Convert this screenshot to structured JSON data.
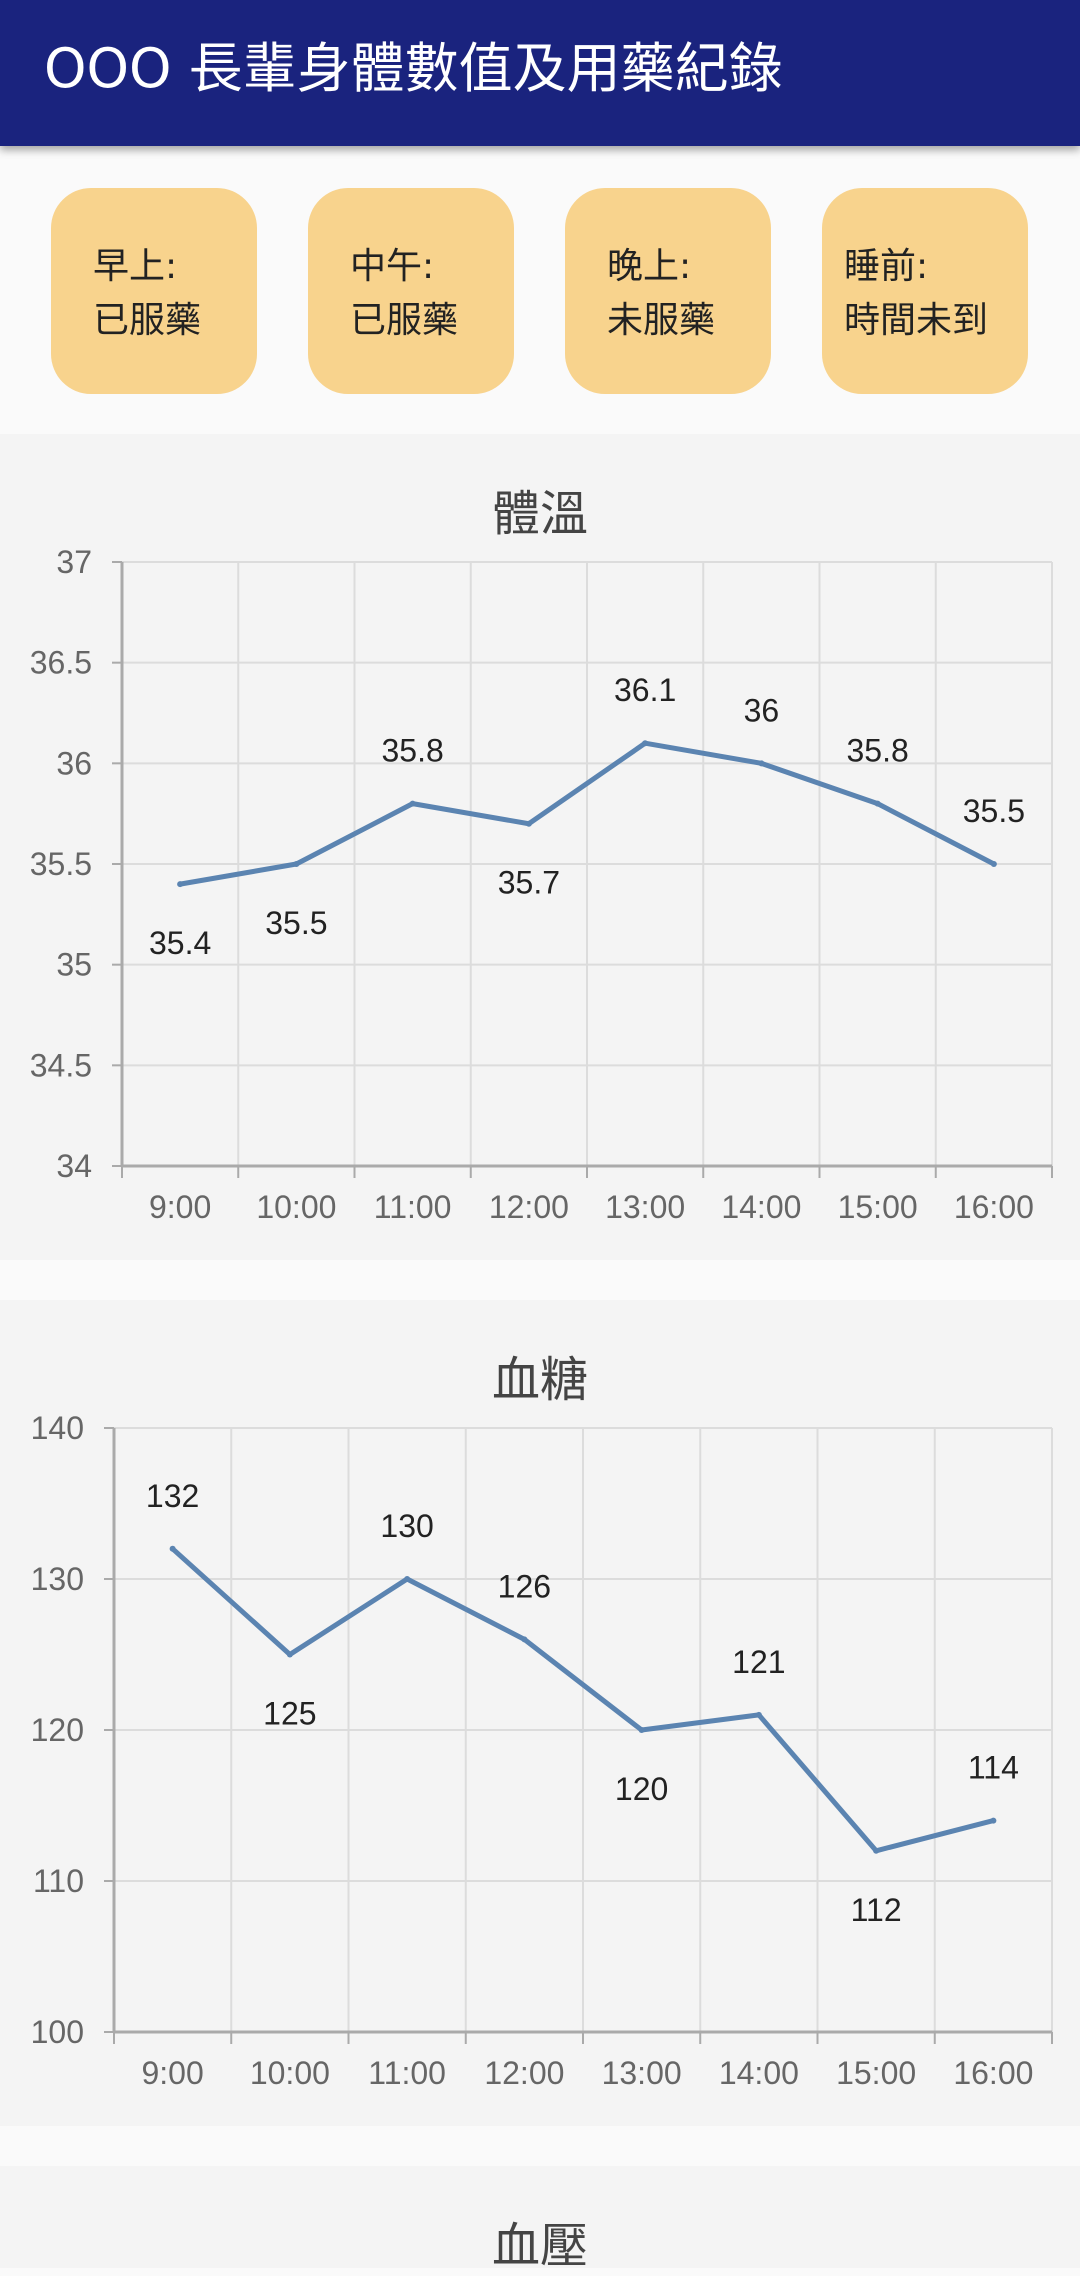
{
  "app": {
    "title": "OOO 長輩身體數值及用藥紀錄"
  },
  "medication_status": [
    {
      "period": "早上:",
      "status": "已服藥"
    },
    {
      "period": "中午:",
      "status": "已服藥"
    },
    {
      "period": "晚上:",
      "status": "未服藥"
    },
    {
      "period": "睡前:",
      "status": "時間未到"
    }
  ],
  "colors": {
    "appbar": "#1a237e",
    "card": "#f8d38d",
    "line": "#5b84b1"
  },
  "chart_data": [
    {
      "type": "line",
      "title": "體溫",
      "categories": [
        "9:00",
        "10:00",
        "11:00",
        "12:00",
        "13:00",
        "14:00",
        "15:00",
        "16:00"
      ],
      "values": [
        35.4,
        35.5,
        35.8,
        35.7,
        36.1,
        36,
        35.8,
        35.5
      ],
      "ylim": [
        34,
        37
      ],
      "yticks": [
        "34",
        "34.5",
        "35",
        "35.5",
        "36",
        "36.5",
        "37"
      ],
      "grid": true
    },
    {
      "type": "line",
      "title": "血糖",
      "categories": [
        "9:00",
        "10:00",
        "11:00",
        "12:00",
        "13:00",
        "14:00",
        "15:00",
        "16:00"
      ],
      "values": [
        132,
        125,
        130,
        126,
        120,
        121,
        112,
        114
      ],
      "ylim": [
        100,
        140
      ],
      "yticks": [
        "100",
        "110",
        "120",
        "130",
        "140"
      ],
      "grid": true
    },
    {
      "type": "line",
      "title": "血壓"
    }
  ]
}
